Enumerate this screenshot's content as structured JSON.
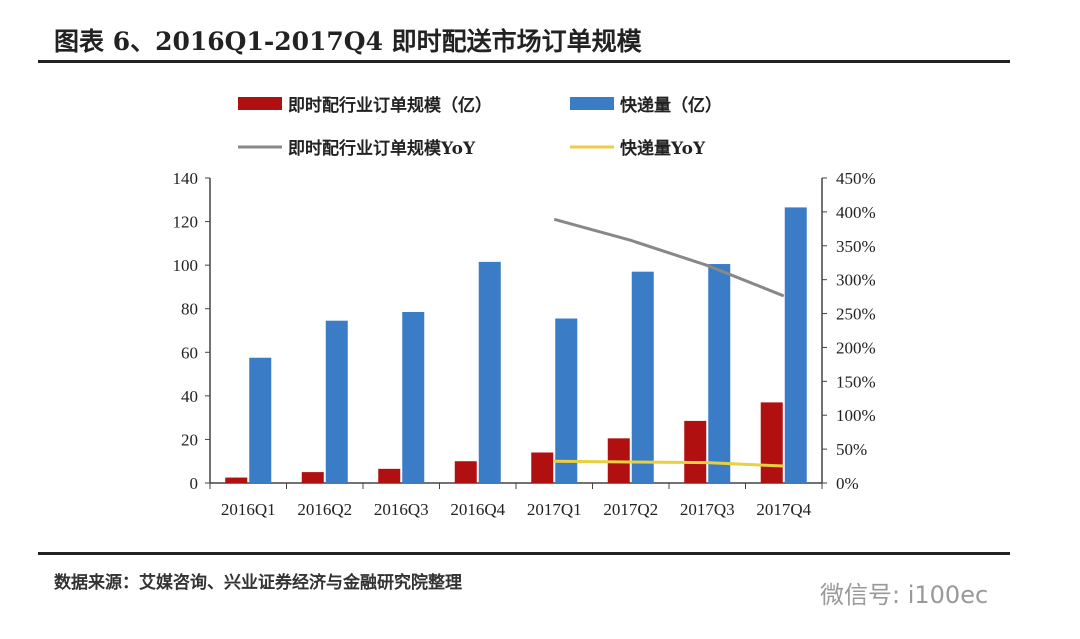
{
  "title": "图表 6、2016Q1-2017Q4 即时配送市场订单规模",
  "source": "数据来源：艾媒咨询、兴业证券经济与金融研究院整理",
  "watermark": "微信号: i100ec",
  "chart_data": {
    "type": "bar",
    "categories": [
      "2016Q1",
      "2016Q2",
      "2016Q3",
      "2016Q4",
      "2017Q1",
      "2017Q2",
      "2017Q3",
      "2017Q4"
    ],
    "ylim": [
      0,
      140
    ],
    "yticks": [
      "0",
      "20",
      "40",
      "60",
      "80",
      "100",
      "120",
      "140"
    ],
    "y2lim": [
      0,
      450
    ],
    "y2ticks": [
      "0%",
      "50%",
      "100%",
      "150%",
      "200%",
      "250%",
      "300%",
      "350%",
      "400%",
      "450%"
    ],
    "grid": false,
    "legend_position": "top",
    "series": [
      {
        "name": "即时配行业订单规模（亿）",
        "type": "bar",
        "axis": "left",
        "color": "#b01010",
        "values": [
          2.5,
          5,
          6.5,
          10,
          14,
          20.5,
          28.5,
          37
        ]
      },
      {
        "name": "快递量（亿）",
        "type": "bar",
        "axis": "left",
        "color": "#3a7cc6",
        "values": [
          57.5,
          74.5,
          78.5,
          101.5,
          75.5,
          97,
          100.5,
          126.5
        ]
      },
      {
        "name": "即时配行业订单规模YoY",
        "type": "line",
        "axis": "right",
        "color": "#888888",
        "values": [
          null,
          null,
          null,
          null,
          389,
          358,
          321,
          276
        ]
      },
      {
        "name": "快递量YoY",
        "type": "line",
        "axis": "right",
        "color": "#e8d040",
        "values": [
          null,
          null,
          null,
          null,
          32,
          31,
          30,
          25
        ]
      }
    ]
  }
}
